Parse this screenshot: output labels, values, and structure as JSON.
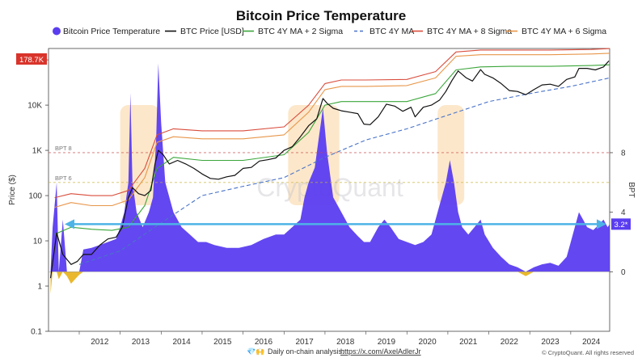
{
  "chart_data": {
    "type": "line",
    "title": "Bitcoin Price Temperature",
    "legend": [
      {
        "name": "Bitcoin Price Temperature",
        "color": "#5b3df0",
        "style": "dot"
      },
      {
        "name": "BTC Price [USD]",
        "color": "#111111",
        "style": "solid"
      },
      {
        "name": "BTC 4Y MA + 2 Sigma",
        "color": "#3aa63a",
        "style": "solid"
      },
      {
        "name": "BTC 4Y MA",
        "color": "#4a74c9",
        "style": "dashed"
      },
      {
        "name": "BTC 4Y MA + 8 Sigma",
        "color": "#d94c3c",
        "style": "solid"
      },
      {
        "name": "BTC 4Y MA + 6 Sigma",
        "color": "#e8964a",
        "style": "solid"
      }
    ],
    "legend_position": "top",
    "y_left": {
      "label": "Price ($)",
      "scale": "log",
      "range": [
        0.1,
        178700
      ],
      "ticks": [
        "0.1",
        "1",
        "10",
        "100",
        "1K",
        "10K",
        "100K"
      ]
    },
    "y_right": {
      "label": "BPT",
      "range": [
        -4,
        15
      ],
      "ticks": [
        "0",
        "4",
        "8"
      ]
    },
    "x": {
      "ticks": [
        "2012",
        "2013",
        "2014",
        "2015",
        "2016",
        "2017",
        "2018",
        "2019",
        "2020",
        "2021",
        "2022",
        "2023",
        "2024"
      ],
      "range": [
        2011.25,
        2024.95
      ]
    },
    "current_price_badge": {
      "text": "178.7K",
      "color": "#d9342b"
    },
    "current_bpt_badge": {
      "text": "3.2*",
      "color": "#5b3df0"
    },
    "reference_lines": [
      {
        "label": "BPT 8",
        "bpt": 8,
        "color": "#c94a4a"
      },
      {
        "label": "BPT 6",
        "bpt": 6,
        "color": "#c9b43a"
      }
    ],
    "horizontal_arrow": {
      "bpt": 3.2,
      "color": "#4db3e6"
    },
    "highlight_zones": [
      {
        "x_start": 2013.0,
        "x_end": 2013.95
      },
      {
        "x_start": 2017.1,
        "x_end": 2018.35
      },
      {
        "x_start": 2020.75,
        "x_end": 2021.4
      }
    ],
    "series": [
      {
        "name": "BTC Price [USD]",
        "x": [
          2011.3,
          2011.45,
          2011.6,
          2011.8,
          2011.95,
          2012.1,
          2012.3,
          2012.5,
          2012.7,
          2012.9,
          2013.05,
          2013.2,
          2013.3,
          2013.45,
          2013.6,
          2013.75,
          2013.85,
          2013.93,
          2014.05,
          2014.2,
          2014.4,
          2014.6,
          2014.8,
          2015.0,
          2015.2,
          2015.4,
          2015.6,
          2015.8,
          2016.0,
          2016.2,
          2016.4,
          2016.6,
          2016.8,
          2017.0,
          2017.2,
          2017.4,
          2017.6,
          2017.8,
          2017.95,
          2018.05,
          2018.2,
          2018.4,
          2018.6,
          2018.8,
          2018.95,
          2019.1,
          2019.3,
          2019.5,
          2019.7,
          2019.9,
          2020.1,
          2020.2,
          2020.4,
          2020.6,
          2020.8,
          2020.95,
          2021.1,
          2021.25,
          2021.45,
          2021.6,
          2021.8,
          2021.9,
          2022.1,
          2022.3,
          2022.5,
          2022.7,
          2022.9,
          2023.1,
          2023.3,
          2023.5,
          2023.7,
          2023.9,
          2024.1,
          2024.2,
          2024.4,
          2024.6,
          2024.8,
          2024.93
        ],
        "values": [
          1.5,
          15,
          5,
          3,
          3.5,
          5,
          5,
          8,
          11,
          12,
          20,
          90,
          150,
          110,
          100,
          130,
          500,
          1000,
          800,
          500,
          600,
          500,
          400,
          300,
          240,
          230,
          260,
          280,
          400,
          420,
          580,
          620,
          680,
          1000,
          1200,
          2000,
          3500,
          5000,
          14000,
          11000,
          8500,
          7500,
          7000,
          6500,
          3800,
          3700,
          5500,
          10500,
          9500,
          7300,
          9000,
          5500,
          9000,
          10000,
          13000,
          20000,
          35000,
          57000,
          40000,
          34000,
          61000,
          48000,
          40000,
          30000,
          21000,
          20000,
          17000,
          22000,
          28000,
          29000,
          26000,
          37000,
          42000,
          65000,
          65000,
          60000,
          70000,
          95000
        ]
      },
      {
        "name": "BTC 4Y MA",
        "x": [
          2012.0,
          2013.0,
          2014.0,
          2015.0,
          2016.0,
          2017.0,
          2018.0,
          2019.0,
          2020.0,
          2021.0,
          2022.0,
          2023.0,
          2024.0,
          2024.95
        ],
        "values": [
          3,
          6,
          25,
          100,
          160,
          250,
          700,
          1700,
          3000,
          6000,
          12000,
          18000,
          26000,
          40000
        ]
      },
      {
        "name": "BTC 4Y MA + 2 Sigma",
        "x": [
          2011.4,
          2011.8,
          2012.3,
          2012.8,
          2013.2,
          2013.6,
          2013.9,
          2014.3,
          2015.0,
          2016.0,
          2017.0,
          2017.6,
          2018.0,
          2018.4,
          2019.0,
          2020.0,
          2020.7,
          2021.2,
          2021.8,
          2022.5,
          2023.5,
          2024.5,
          2024.95
        ],
        "values": [
          14,
          20,
          18,
          17,
          20,
          60,
          400,
          700,
          600,
          600,
          800,
          2500,
          10000,
          12000,
          12000,
          12000,
          18000,
          60000,
          70000,
          72000,
          72000,
          75000,
          78000
        ]
      },
      {
        "name": "BTC 4Y MA + 6 Sigma",
        "x": [
          2011.4,
          2011.8,
          2012.3,
          2012.8,
          2013.2,
          2013.6,
          2013.9,
          2014.3,
          2015.0,
          2016.0,
          2017.0,
          2017.6,
          2018.0,
          2018.4,
          2019.0,
          2020.0,
          2020.7,
          2021.2,
          2021.8,
          2022.5,
          2023.5,
          2024.5,
          2024.95
        ],
        "values": [
          55,
          70,
          60,
          60,
          80,
          250,
          1500,
          2000,
          1800,
          1800,
          2200,
          7000,
          22000,
          26000,
          26000,
          27000,
          40000,
          120000,
          130000,
          130000,
          130000,
          135000,
          140000
        ]
      },
      {
        "name": "BTC 4Y MA + 8 Sigma",
        "x": [
          2011.4,
          2011.8,
          2012.3,
          2012.8,
          2013.2,
          2013.6,
          2013.9,
          2014.3,
          2015.0,
          2016.0,
          2017.0,
          2017.6,
          2018.0,
          2018.4,
          2019.0,
          2020.0,
          2020.7,
          2021.2,
          2021.8,
          2022.5,
          2023.5,
          2024.5,
          2024.95
        ],
        "values": [
          90,
          110,
          100,
          100,
          130,
          400,
          2200,
          3000,
          2700,
          2700,
          3300,
          10000,
          30000,
          36000,
          36000,
          37000,
          55000,
          150000,
          165000,
          165000,
          165000,
          170000,
          178000
        ]
      },
      {
        "name": "Bitcoin Price Temperature",
        "x": [
          2011.3,
          2011.35,
          2011.45,
          2011.5,
          2011.6,
          2011.7,
          2011.8,
          2011.9,
          2012.0,
          2012.1,
          2012.3,
          2012.5,
          2012.7,
          2012.9,
          2013.0,
          2013.1,
          2013.2,
          2013.25,
          2013.3,
          2013.4,
          2013.55,
          2013.7,
          2013.8,
          2013.88,
          2013.93,
          2014.0,
          2014.1,
          2014.3,
          2014.5,
          2014.7,
          2014.9,
          2015.1,
          2015.3,
          2015.6,
          2015.9,
          2016.2,
          2016.5,
          2016.8,
          2017.0,
          2017.2,
          2017.4,
          2017.5,
          2017.6,
          2017.75,
          2017.85,
          2017.95,
          2018.05,
          2018.2,
          2018.4,
          2018.6,
          2018.8,
          2018.95,
          2019.1,
          2019.3,
          2019.45,
          2019.6,
          2019.8,
          2020.0,
          2020.2,
          2020.4,
          2020.6,
          2020.75,
          2020.85,
          2020.95,
          2021.05,
          2021.15,
          2021.25,
          2021.35,
          2021.5,
          2021.65,
          2021.8,
          2021.9,
          2022.1,
          2022.3,
          2022.5,
          2022.7,
          2022.9,
          2023.1,
          2023.3,
          2023.5,
          2023.7,
          2023.9,
          2024.0,
          2024.1,
          2024.2,
          2024.3,
          2024.4,
          2024.55,
          2024.7,
          2024.8,
          2024.9,
          2024.95
        ],
        "values": [
          -1.5,
          3,
          6,
          -0.5,
          3.5,
          -0.3,
          -0.8,
          -0.5,
          -0.2,
          1.5,
          1.6,
          1.8,
          2.0,
          2.2,
          3,
          4,
          6,
          12,
          6,
          4,
          3,
          4,
          5,
          9,
          14,
          10,
          6,
          4,
          3,
          2.5,
          2,
          2,
          1.8,
          1.6,
          1.6,
          1.8,
          2.2,
          2.5,
          2.5,
          3,
          3.5,
          5,
          6,
          7,
          9,
          11,
          8,
          5,
          4,
          3,
          2.4,
          2,
          2,
          3,
          3.5,
          3,
          2.2,
          2,
          1.8,
          2,
          2.5,
          4,
          5,
          6,
          7.5,
          6,
          4,
          3,
          2.5,
          3,
          3.5,
          2.5,
          1.6,
          1,
          0.5,
          0.3,
          -0.3,
          0.3,
          0.5,
          0.6,
          0.4,
          1,
          2,
          3,
          4,
          3.5,
          3,
          2.8,
          3.2,
          3.5,
          3,
          3.2
        ]
      }
    ]
  },
  "chart_title": "Bitcoin Price Temperature",
  "y_left_label": "Price ($)",
  "y_right_label": "BPT",
  "watermark": "CryptoQuant",
  "footer": {
    "prefix": "Daily on-chain analysis: ",
    "link": "https://x.com/AxelAdlerJr",
    "copyright": "© CryptoQuant. All rights reserved"
  }
}
